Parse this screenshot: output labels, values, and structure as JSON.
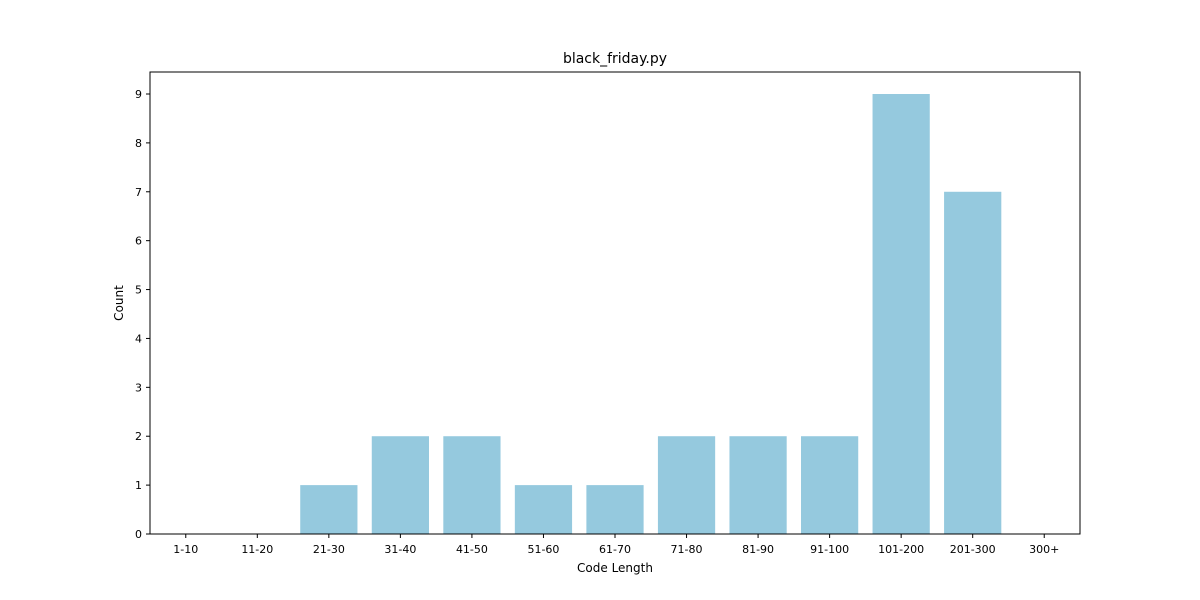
{
  "chart_data": {
    "type": "bar",
    "title": "black_friday.py",
    "xlabel": "Code Length",
    "ylabel": "Count",
    "categories": [
      "1-10",
      "11-20",
      "21-30",
      "31-40",
      "41-50",
      "51-60",
      "61-70",
      "71-80",
      "81-90",
      "91-100",
      "101-200",
      "201-300",
      "300+"
    ],
    "values": [
      0,
      0,
      1,
      2,
      2,
      1,
      1,
      2,
      2,
      2,
      9,
      7,
      0
    ],
    "ylim": [
      0,
      9.45
    ],
    "yticks": [
      0,
      1,
      2,
      3,
      4,
      5,
      6,
      7,
      8,
      9
    ],
    "grid": false,
    "bar_color": "#95c9de"
  }
}
